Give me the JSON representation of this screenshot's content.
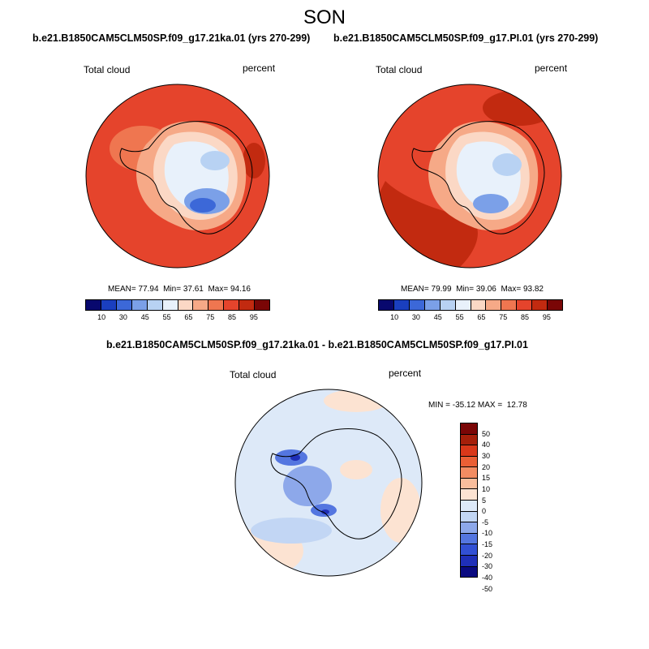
{
  "page": {
    "title": "SON",
    "variable": "Total cloud",
    "units": "percent"
  },
  "palettes": {
    "abs": [
      "#08086e",
      "#1a3fbf",
      "#3c68d8",
      "#7ba0e8",
      "#b8d2f3",
      "#e8f1fb",
      "#fbd8c5",
      "#f6a987",
      "#ef7650",
      "#e5442c",
      "#c22a10",
      "#7a0606"
    ],
    "diff": [
      "#0a0a80",
      "#1f2fb8",
      "#3250d4",
      "#5476e0",
      "#8da8ea",
      "#c2d6f4",
      "#dde9f8",
      "#fce3d2",
      "#f8bd9c",
      "#f28c62",
      "#ea5f35",
      "#d9381a",
      "#a51f0a",
      "#7a0606"
    ]
  },
  "chart_data": [
    {
      "type": "heatmap",
      "projection": "south-polar-stereographic",
      "title": "b.e21.B1850CAM5CLM50SP.f09_g17.21ka.01 (yrs 270-299)",
      "left_label": "Total cloud",
      "right_label": "percent",
      "stats": {
        "mean_label": "MEAN=",
        "mean": "77.94",
        "min_label": "Min=",
        "min": "37.61",
        "max_label": "Max=",
        "max": "94.16"
      },
      "colorbar": {
        "orientation": "horizontal",
        "levels": [
          "10",
          "30",
          "45",
          "55",
          "65",
          "75",
          "85",
          "95"
        ]
      }
    },
    {
      "type": "heatmap",
      "projection": "south-polar-stereographic",
      "title": "b.e21.B1850CAM5CLM50SP.f09_g17.PI.01 (yrs 270-299)",
      "left_label": "Total cloud",
      "right_label": "percent",
      "stats": {
        "mean_label": "MEAN=",
        "mean": "79.99",
        "min_label": "Min=",
        "min": "39.06",
        "max_label": "Max=",
        "max": "93.82"
      },
      "colorbar": {
        "orientation": "horizontal",
        "levels": [
          "10",
          "30",
          "45",
          "55",
          "65",
          "75",
          "85",
          "95"
        ]
      }
    },
    {
      "type": "heatmap",
      "projection": "south-polar-stereographic",
      "title": "b.e21.B1850CAM5CLM50SP.f09_g17.21ka.01 - b.e21.B1850CAM5CLM50SP.f09_g17.PI.01",
      "left_label": "Total cloud",
      "right_label": "percent",
      "stats": {
        "min_label": "MIN =",
        "min": "-35.12",
        "max_label": "MAX =",
        "max": "12.78"
      },
      "colorbar": {
        "orientation": "vertical",
        "levels": [
          "50",
          "40",
          "30",
          "20",
          "15",
          "10",
          "5",
          "0",
          "-5",
          "-10",
          "-15",
          "-20",
          "-30",
          "-40",
          "-50"
        ]
      }
    }
  ]
}
